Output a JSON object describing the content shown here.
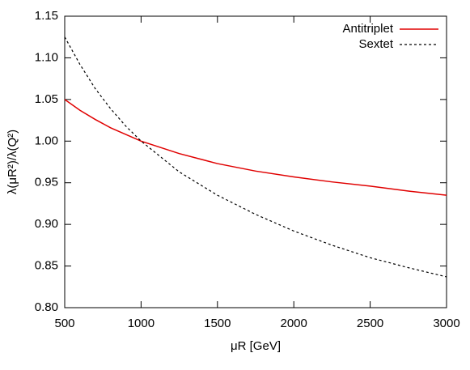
{
  "chart_data": {
    "type": "line",
    "x_label": "μR [GeV]",
    "y_label": "λ(μR²)/λ(Q²)",
    "x": [
      500,
      600,
      700,
      800,
      900,
      1000,
      1250,
      1500,
      1750,
      2000,
      2250,
      2500,
      2750,
      3000
    ],
    "series": [
      {
        "name": "Antitriplet",
        "color": "#e00000",
        "dash": "solid",
        "values": [
          1.05,
          1.037,
          1.026,
          1.016,
          1.008,
          1.0,
          0.985,
          0.973,
          0.964,
          0.957,
          0.951,
          0.946,
          0.94,
          0.935
        ]
      },
      {
        "name": "Sextet",
        "color": "#000000",
        "dash": "dashed",
        "values": [
          1.125,
          1.092,
          1.063,
          1.039,
          1.018,
          1.0,
          0.963,
          0.935,
          0.912,
          0.892,
          0.875,
          0.86,
          0.848,
          0.837
        ]
      }
    ],
    "xlim": [
      500,
      3000
    ],
    "ylim": [
      0.8,
      1.15
    ],
    "xticks": [
      500,
      1000,
      1500,
      2000,
      2500,
      3000
    ],
    "yticks": [
      {
        "value": 0.8,
        "label": "0.80"
      },
      {
        "value": 0.85,
        "label": "0.85"
      },
      {
        "value": 0.9,
        "label": "0.90"
      },
      {
        "value": 0.95,
        "label": "0.95"
      },
      {
        "value": 1.0,
        "label": "1.00"
      },
      {
        "value": 1.05,
        "label": "1.05"
      },
      {
        "value": 1.1,
        "label": "1.10"
      },
      {
        "value": 1.15,
        "label": "1.15"
      }
    ],
    "legend": "top-right",
    "grid": false
  }
}
